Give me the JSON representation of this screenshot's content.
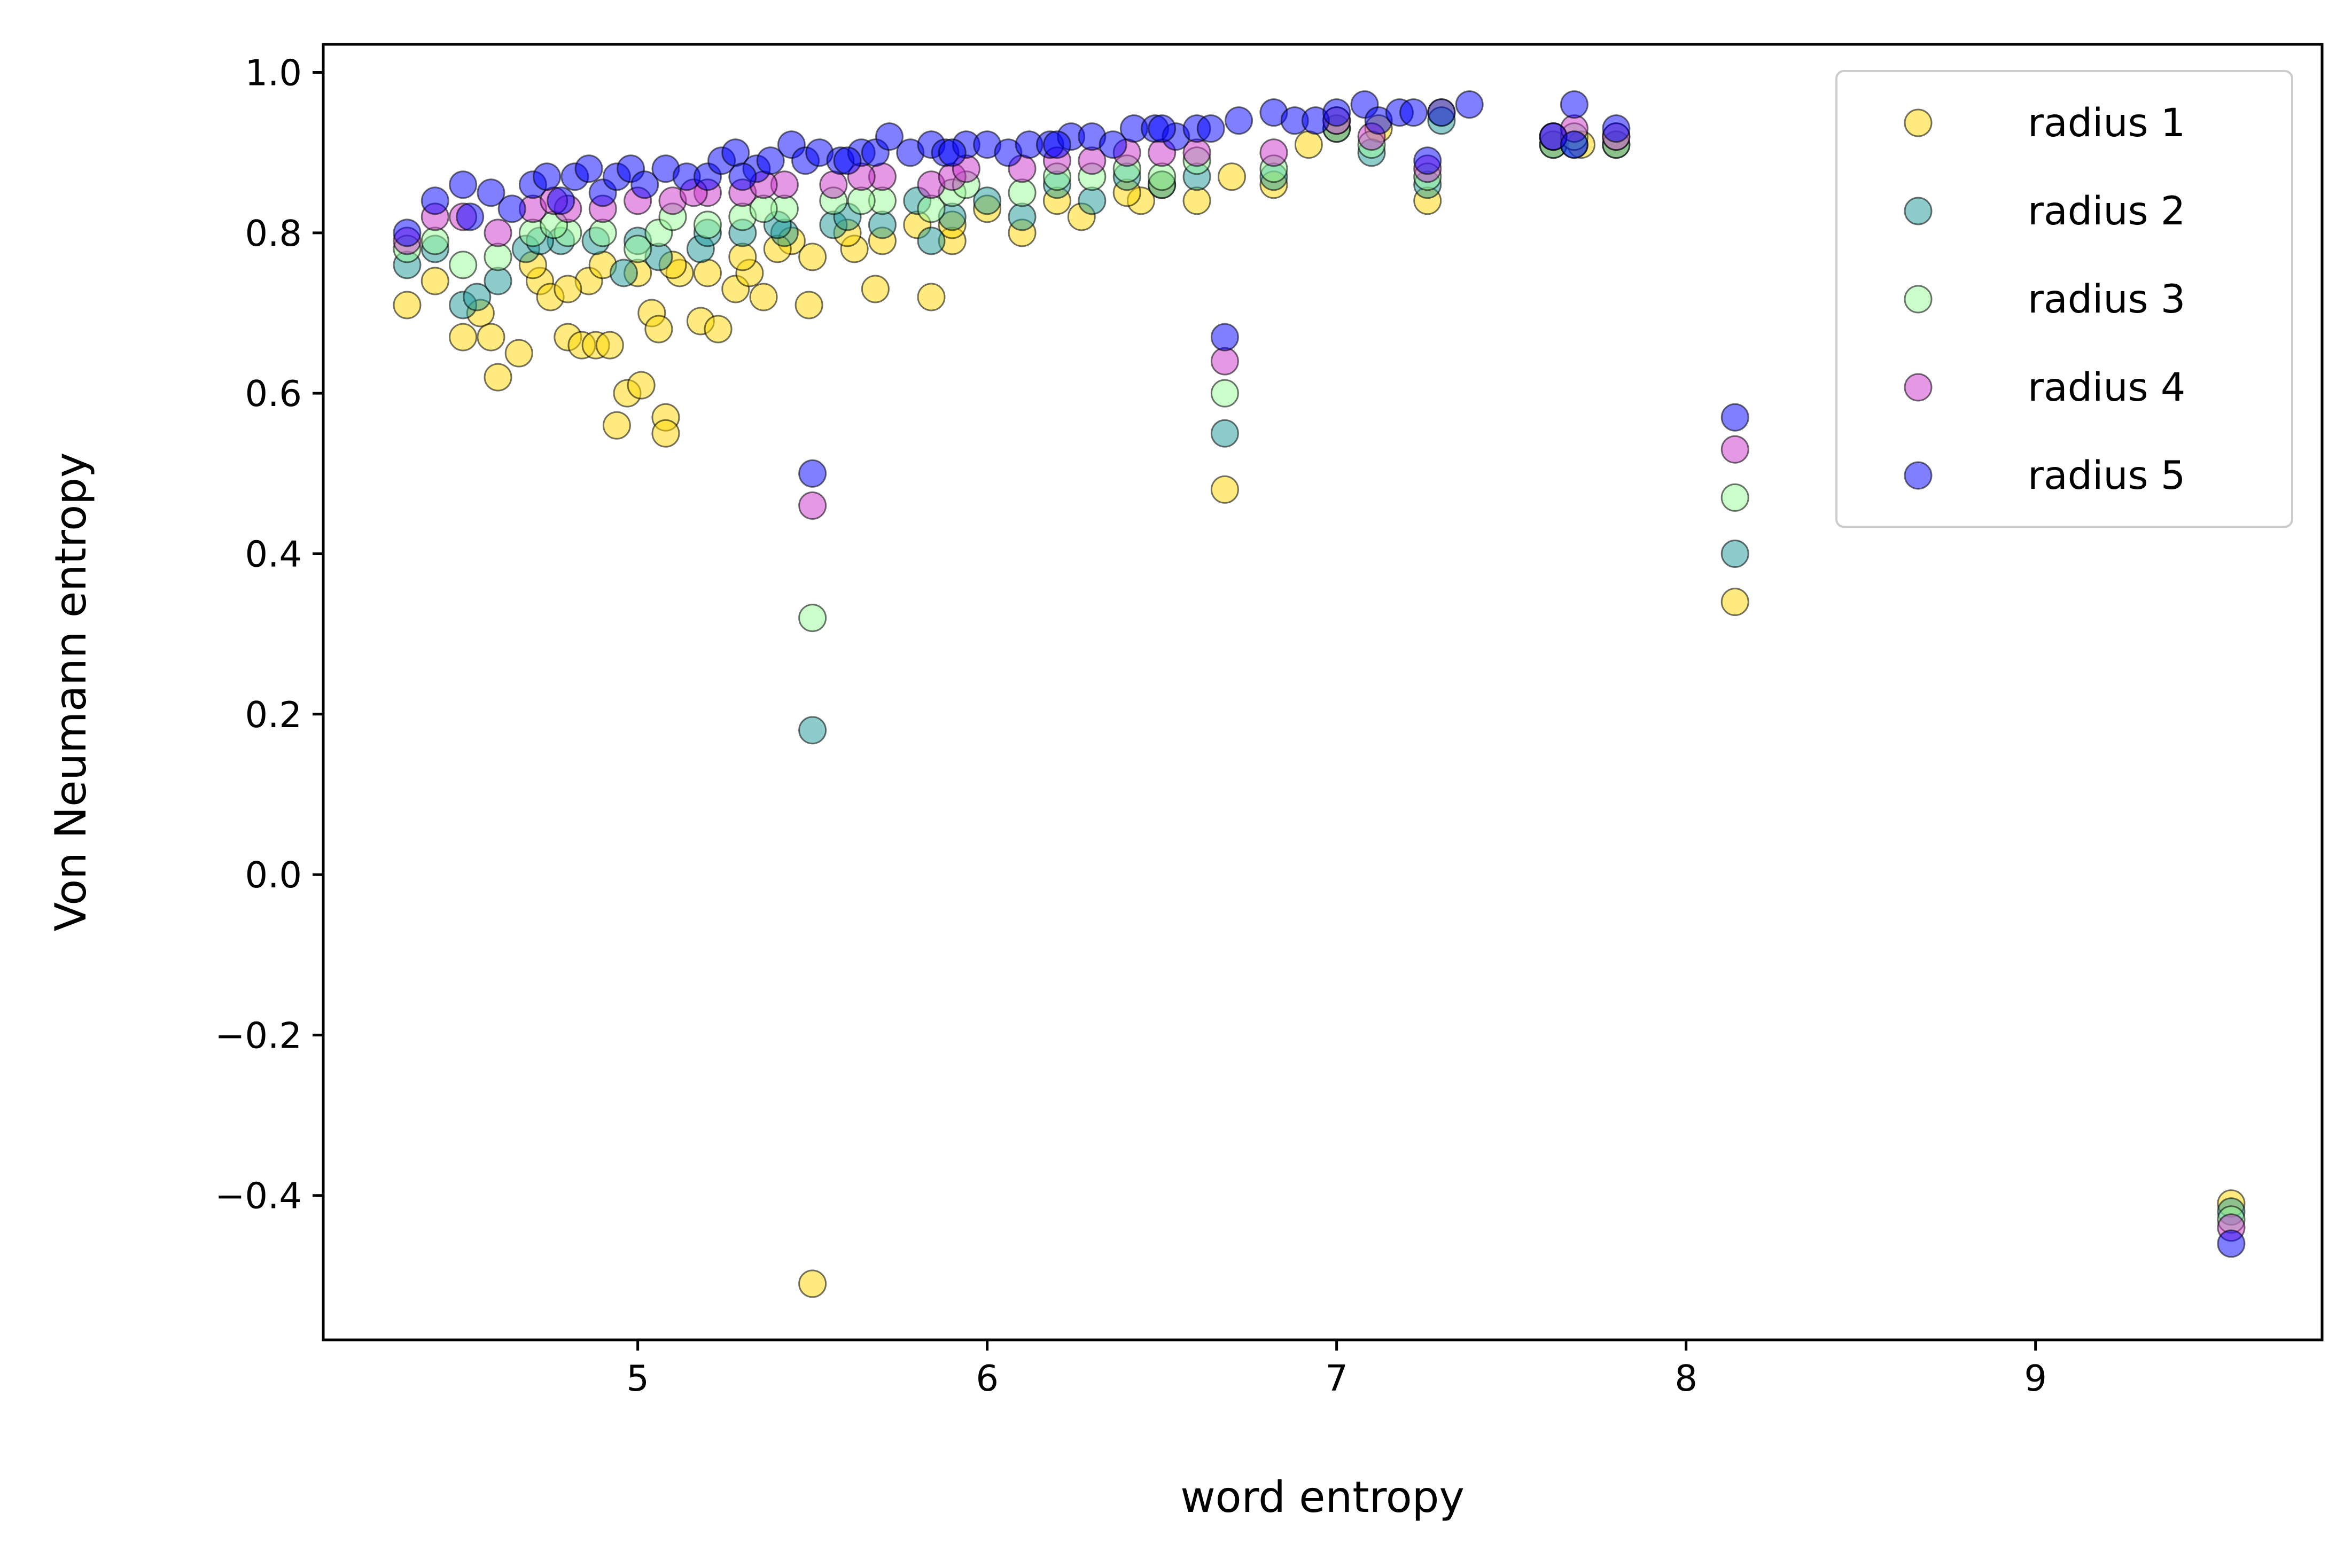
{
  "chart_data": {
    "type": "scatter",
    "title": "",
    "xlabel": "word entropy",
    "ylabel": "Von Neumann entropy",
    "xlim": [
      4.1,
      9.82
    ],
    "ylim": [
      -0.58,
      1.035
    ],
    "xticks": [
      {
        "value": 5,
        "label": "5"
      },
      {
        "value": 6,
        "label": "6"
      },
      {
        "value": 7,
        "label": "7"
      },
      {
        "value": 8,
        "label": "8"
      },
      {
        "value": 9,
        "label": "9"
      }
    ],
    "yticks": [
      {
        "value": 1.0,
        "label": "1.0"
      },
      {
        "value": 0.8,
        "label": "0.8"
      },
      {
        "value": 0.6,
        "label": "0.6"
      },
      {
        "value": 0.4,
        "label": "0.4"
      },
      {
        "value": 0.2,
        "label": "0.2"
      },
      {
        "value": 0.0,
        "label": "0.0"
      },
      {
        "value": -0.2,
        "label": "−0.2"
      },
      {
        "value": -0.4,
        "label": "−0.4"
      }
    ],
    "grid": false,
    "legend_position": "top-right",
    "series": [
      {
        "name": "radius 1",
        "color": "#ffd700",
        "points": [
          [
            4.34,
            0.71
          ],
          [
            4.42,
            0.74
          ],
          [
            4.5,
            0.67
          ],
          [
            4.55,
            0.7
          ],
          [
            4.58,
            0.67
          ],
          [
            4.6,
            0.62
          ],
          [
            4.66,
            0.65
          ],
          [
            4.72,
            0.74
          ],
          [
            4.75,
            0.72
          ],
          [
            4.8,
            0.67
          ],
          [
            4.84,
            0.66
          ],
          [
            4.86,
            0.74
          ],
          [
            4.88,
            0.66
          ],
          [
            4.92,
            0.66
          ],
          [
            4.94,
            0.56
          ],
          [
            4.97,
            0.6
          ],
          [
            5.01,
            0.61
          ],
          [
            5.04,
            0.7
          ],
          [
            5.06,
            0.68
          ],
          [
            5.08,
            0.57
          ],
          [
            5.08,
            0.55
          ],
          [
            5.12,
            0.75
          ],
          [
            5.18,
            0.69
          ],
          [
            5.23,
            0.68
          ],
          [
            5.28,
            0.73
          ],
          [
            5.32,
            0.75
          ],
          [
            5.36,
            0.72
          ],
          [
            5.44,
            0.79
          ],
          [
            5.49,
            0.71
          ],
          [
            5.5,
            -0.51
          ],
          [
            5.62,
            0.78
          ],
          [
            5.68,
            0.73
          ],
          [
            5.84,
            0.72
          ],
          [
            5.9,
            0.79
          ],
          [
            6.1,
            0.8
          ],
          [
            6.27,
            0.82
          ],
          [
            6.44,
            0.84
          ],
          [
            6.6,
            0.84
          ],
          [
            6.82,
            0.86
          ],
          [
            6.92,
            0.91
          ],
          [
            7.12,
            0.93
          ],
          [
            7.26,
            0.84
          ],
          [
            7.3,
            0.95
          ],
          [
            7.62,
            0.91
          ],
          [
            7.8,
            0.91
          ],
          [
            8.14,
            0.34
          ],
          [
            9.56,
            -0.41
          ],
          [
            4.7,
            0.76
          ],
          [
            4.9,
            0.76
          ],
          [
            5.1,
            0.76
          ],
          [
            5.3,
            0.77
          ],
          [
            5.5,
            0.77
          ],
          [
            5.7,
            0.79
          ],
          [
            5.9,
            0.81
          ],
          [
            6.0,
            0.83
          ],
          [
            6.2,
            0.84
          ],
          [
            6.4,
            0.85
          ],
          [
            6.7,
            0.87
          ],
          [
            6.68,
            0.48
          ],
          [
            5.2,
            0.75
          ],
          [
            5.0,
            0.75
          ],
          [
            4.8,
            0.73
          ],
          [
            5.4,
            0.78
          ],
          [
            5.6,
            0.8
          ],
          [
            5.8,
            0.81
          ],
          [
            6.5,
            0.86
          ],
          [
            7.0,
            0.93
          ],
          [
            7.7,
            0.91
          ]
        ]
      },
      {
        "name": "radius 2",
        "color": "#1e9a9a",
        "points": [
          [
            4.34,
            0.76
          ],
          [
            4.42,
            0.78
          ],
          [
            4.5,
            0.71
          ],
          [
            4.54,
            0.72
          ],
          [
            4.6,
            0.74
          ],
          [
            4.68,
            0.78
          ],
          [
            4.78,
            0.79
          ],
          [
            4.88,
            0.79
          ],
          [
            4.96,
            0.75
          ],
          [
            5.06,
            0.77
          ],
          [
            5.18,
            0.78
          ],
          [
            5.3,
            0.8
          ],
          [
            5.42,
            0.8
          ],
          [
            5.5,
            0.18
          ],
          [
            5.56,
            0.81
          ],
          [
            5.7,
            0.81
          ],
          [
            5.84,
            0.79
          ],
          [
            5.9,
            0.82
          ],
          [
            6.1,
            0.82
          ],
          [
            6.3,
            0.84
          ],
          [
            6.5,
            0.86
          ],
          [
            6.68,
            0.55
          ],
          [
            6.82,
            0.87
          ],
          [
            7.1,
            0.9
          ],
          [
            7.26,
            0.86
          ],
          [
            7.62,
            0.91
          ],
          [
            7.8,
            0.91
          ],
          [
            8.14,
            0.4
          ],
          [
            9.56,
            -0.42
          ],
          [
            4.72,
            0.79
          ],
          [
            5.0,
            0.79
          ],
          [
            5.2,
            0.8
          ],
          [
            5.4,
            0.81
          ],
          [
            5.6,
            0.82
          ],
          [
            5.8,
            0.84
          ],
          [
            6.0,
            0.84
          ],
          [
            6.2,
            0.86
          ],
          [
            6.4,
            0.87
          ],
          [
            6.6,
            0.87
          ],
          [
            7.0,
            0.93
          ],
          [
            7.3,
            0.94
          ],
          [
            7.68,
            0.91
          ]
        ]
      },
      {
        "name": "radius 3",
        "color": "#98fb98",
        "points": [
          [
            4.34,
            0.78
          ],
          [
            4.42,
            0.79
          ],
          [
            4.5,
            0.76
          ],
          [
            4.6,
            0.77
          ],
          [
            4.7,
            0.8
          ],
          [
            4.8,
            0.8
          ],
          [
            4.9,
            0.8
          ],
          [
            5.0,
            0.78
          ],
          [
            5.06,
            0.8
          ],
          [
            5.2,
            0.81
          ],
          [
            5.3,
            0.82
          ],
          [
            5.42,
            0.83
          ],
          [
            5.5,
            0.32
          ],
          [
            5.56,
            0.84
          ],
          [
            5.7,
            0.84
          ],
          [
            5.84,
            0.83
          ],
          [
            5.9,
            0.85
          ],
          [
            6.1,
            0.85
          ],
          [
            6.3,
            0.87
          ],
          [
            6.5,
            0.87
          ],
          [
            6.68,
            0.6
          ],
          [
            6.82,
            0.88
          ],
          [
            7.1,
            0.91
          ],
          [
            7.26,
            0.87
          ],
          [
            7.62,
            0.92
          ],
          [
            7.8,
            0.92
          ],
          [
            8.14,
            0.47
          ],
          [
            9.56,
            -0.43
          ],
          [
            4.76,
            0.81
          ],
          [
            5.1,
            0.82
          ],
          [
            5.36,
            0.83
          ],
          [
            5.64,
            0.84
          ],
          [
            5.94,
            0.86
          ],
          [
            6.2,
            0.87
          ],
          [
            6.4,
            0.88
          ],
          [
            6.6,
            0.89
          ],
          [
            7.0,
            0.94
          ],
          [
            7.68,
            0.92
          ]
        ]
      },
      {
        "name": "radius 4",
        "color": "#cc33cc",
        "points": [
          [
            4.34,
            0.79
          ],
          [
            4.42,
            0.82
          ],
          [
            4.5,
            0.82
          ],
          [
            4.6,
            0.8
          ],
          [
            4.7,
            0.83
          ],
          [
            4.8,
            0.83
          ],
          [
            4.9,
            0.83
          ],
          [
            5.0,
            0.84
          ],
          [
            5.1,
            0.84
          ],
          [
            5.2,
            0.85
          ],
          [
            5.3,
            0.85
          ],
          [
            5.42,
            0.86
          ],
          [
            5.5,
            0.46
          ],
          [
            5.56,
            0.86
          ],
          [
            5.7,
            0.87
          ],
          [
            5.84,
            0.86
          ],
          [
            5.9,
            0.87
          ],
          [
            6.1,
            0.88
          ],
          [
            6.3,
            0.89
          ],
          [
            6.5,
            0.9
          ],
          [
            6.68,
            0.64
          ],
          [
            6.82,
            0.9
          ],
          [
            7.1,
            0.92
          ],
          [
            7.26,
            0.88
          ],
          [
            7.62,
            0.92
          ],
          [
            7.8,
            0.92
          ],
          [
            8.14,
            0.53
          ],
          [
            9.56,
            -0.44
          ],
          [
            4.76,
            0.84
          ],
          [
            5.16,
            0.85
          ],
          [
            5.36,
            0.86
          ],
          [
            5.64,
            0.87
          ],
          [
            5.94,
            0.88
          ],
          [
            6.2,
            0.89
          ],
          [
            6.4,
            0.9
          ],
          [
            6.6,
            0.9
          ],
          [
            7.0,
            0.94
          ],
          [
            7.68,
            0.93
          ]
        ]
      },
      {
        "name": "radius 5",
        "color": "#0000ff",
        "points": [
          [
            4.34,
            0.8
          ],
          [
            4.42,
            0.84
          ],
          [
            4.5,
            0.86
          ],
          [
            4.52,
            0.82
          ],
          [
            4.58,
            0.85
          ],
          [
            4.64,
            0.83
          ],
          [
            4.7,
            0.86
          ],
          [
            4.74,
            0.87
          ],
          [
            4.78,
            0.84
          ],
          [
            4.82,
            0.87
          ],
          [
            4.86,
            0.88
          ],
          [
            4.9,
            0.85
          ],
          [
            4.94,
            0.87
          ],
          [
            4.98,
            0.88
          ],
          [
            5.02,
            0.86
          ],
          [
            5.08,
            0.88
          ],
          [
            5.14,
            0.87
          ],
          [
            5.2,
            0.87
          ],
          [
            5.24,
            0.89
          ],
          [
            5.28,
            0.9
          ],
          [
            5.34,
            0.88
          ],
          [
            5.38,
            0.89
          ],
          [
            5.44,
            0.91
          ],
          [
            5.48,
            0.89
          ],
          [
            5.5,
            0.5
          ],
          [
            5.52,
            0.9
          ],
          [
            5.58,
            0.89
          ],
          [
            5.64,
            0.9
          ],
          [
            5.68,
            0.9
          ],
          [
            5.72,
            0.92
          ],
          [
            5.78,
            0.9
          ],
          [
            5.84,
            0.91
          ],
          [
            5.88,
            0.9
          ],
          [
            5.94,
            0.91
          ],
          [
            6.0,
            0.91
          ],
          [
            6.06,
            0.9
          ],
          [
            6.12,
            0.91
          ],
          [
            6.18,
            0.91
          ],
          [
            6.24,
            0.92
          ],
          [
            6.3,
            0.92
          ],
          [
            6.36,
            0.91
          ],
          [
            6.42,
            0.93
          ],
          [
            6.48,
            0.93
          ],
          [
            6.54,
            0.92
          ],
          [
            6.6,
            0.93
          ],
          [
            6.64,
            0.93
          ],
          [
            6.68,
            0.67
          ],
          [
            6.72,
            0.94
          ],
          [
            6.82,
            0.95
          ],
          [
            6.88,
            0.94
          ],
          [
            6.94,
            0.94
          ],
          [
            7.0,
            0.95
          ],
          [
            7.08,
            0.96
          ],
          [
            7.12,
            0.94
          ],
          [
            7.18,
            0.95
          ],
          [
            7.22,
            0.95
          ],
          [
            7.26,
            0.89
          ],
          [
            7.3,
            0.95
          ],
          [
            7.38,
            0.96
          ],
          [
            7.62,
            0.92
          ],
          [
            7.68,
            0.96
          ],
          [
            7.8,
            0.93
          ],
          [
            8.14,
            0.57
          ],
          [
            9.56,
            -0.46
          ],
          [
            7.68,
            0.91
          ],
          [
            5.3,
            0.87
          ],
          [
            5.6,
            0.89
          ],
          [
            5.9,
            0.9
          ],
          [
            6.2,
            0.91
          ],
          [
            6.5,
            0.93
          ]
        ]
      }
    ]
  }
}
